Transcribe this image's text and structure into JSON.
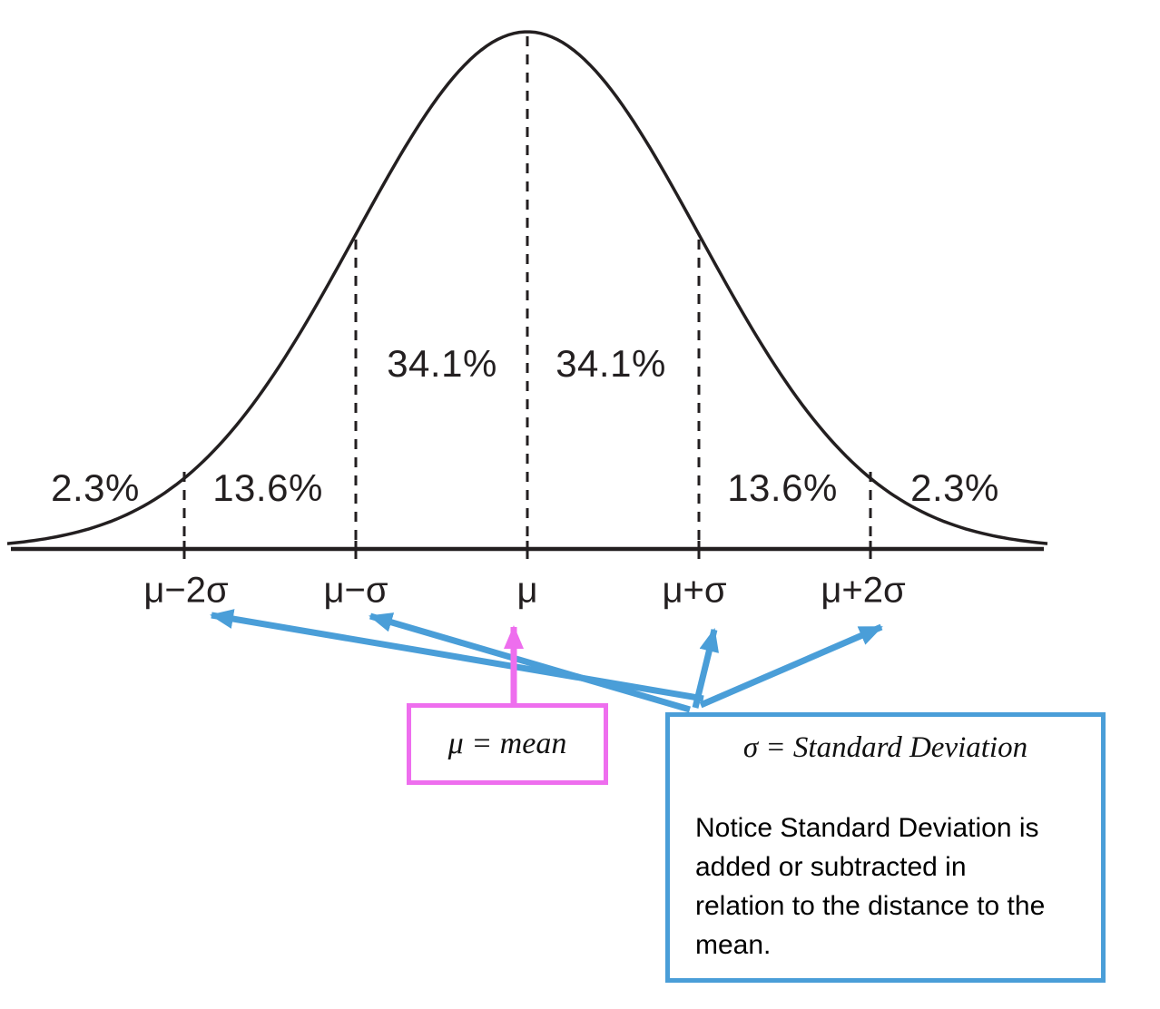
{
  "chart_data": {
    "type": "area",
    "distribution": "normal (bell curve) with empirical-rule bands",
    "x_tick_labels": [
      "μ−2σ",
      "μ−σ",
      "μ",
      "μ+σ",
      "μ+2σ"
    ],
    "segments": [
      {
        "band": "below μ−2σ",
        "percent": "2.3%"
      },
      {
        "band": "μ−2σ to μ−σ",
        "percent": "13.6%"
      },
      {
        "band": "μ−σ to μ",
        "percent": "34.1%"
      },
      {
        "band": "μ to μ+σ",
        "percent": "34.1%"
      },
      {
        "band": "μ+σ to μ+2σ",
        "percent": "13.6%"
      },
      {
        "band": "above μ+2σ",
        "percent": "2.3%"
      }
    ],
    "grid": "off",
    "legend": "none"
  },
  "annotations": {
    "mean_box": {
      "text": "μ = mean",
      "border_color": "#EE6EEE"
    },
    "sd_box": {
      "title": "σ = Standard Deviation",
      "body_lines": [
        "Notice Standard Deviation is",
        "added or subtracted in",
        "relation to the distance to the",
        "mean."
      ],
      "border_color": "#4A9ED8"
    }
  },
  "colors": {
    "ink": "#231F20",
    "pink_accent": "#EE6EEE",
    "blue_accent": "#4A9ED8"
  }
}
